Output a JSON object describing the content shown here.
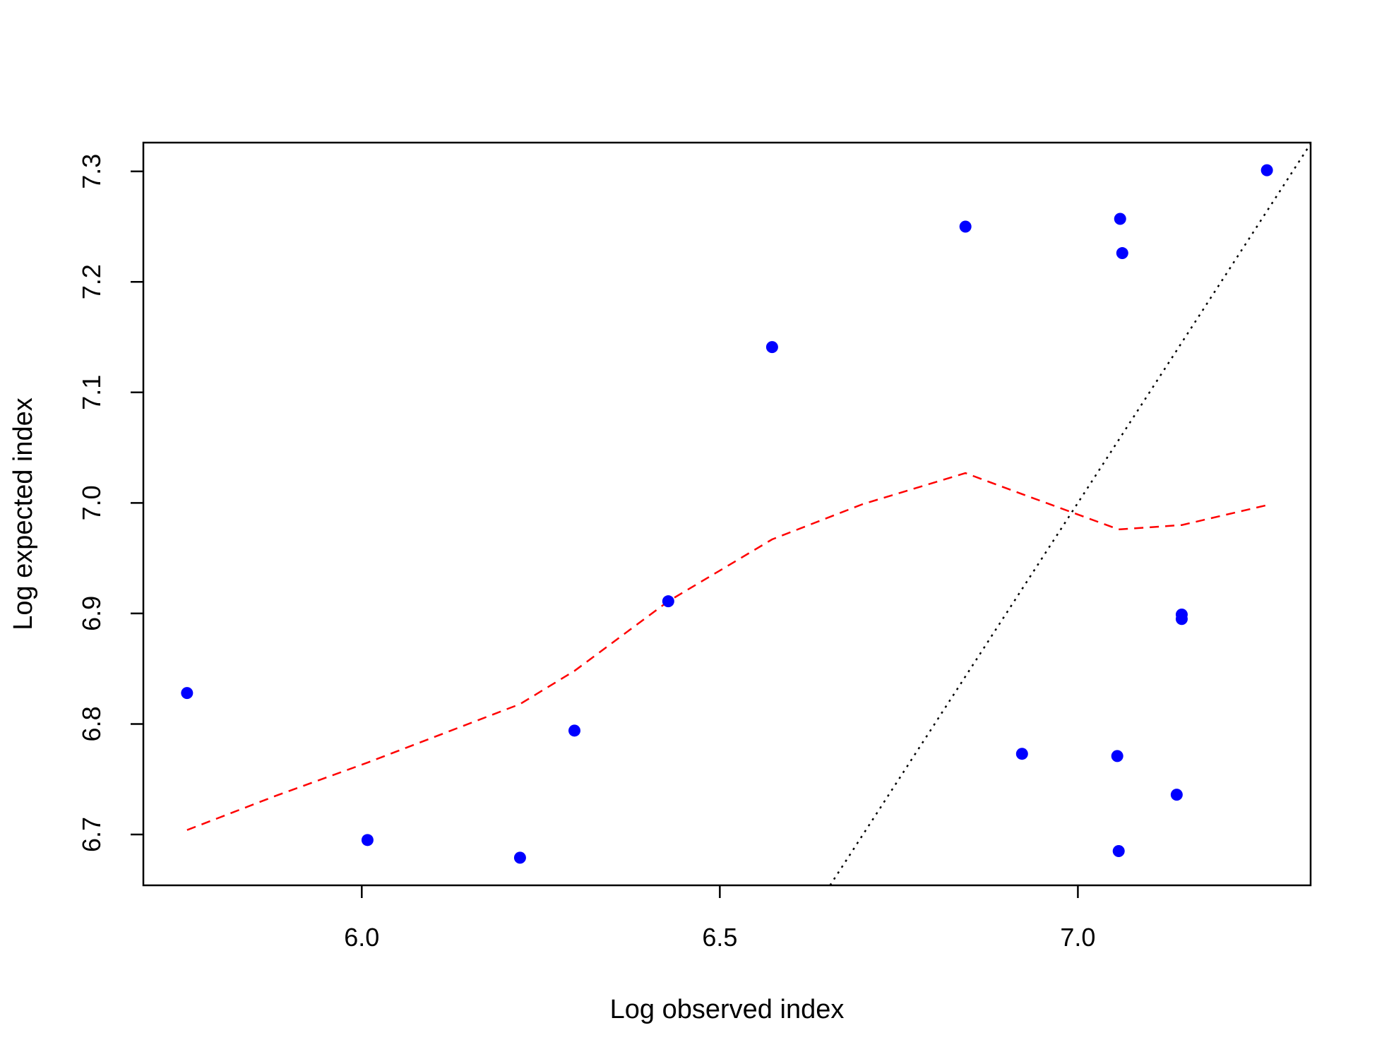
{
  "chart_data": {
    "type": "scatter",
    "title": "",
    "xlabel": "Log observed index",
    "ylabel": "Log expected index",
    "xlim": [
      5.695,
      7.325
    ],
    "ylim": [
      6.654,
      7.326
    ],
    "xticks": [
      6.0,
      6.5,
      7.0
    ],
    "xtick_labels": [
      "6.0",
      "6.5",
      "7.0"
    ],
    "yticks": [
      6.7,
      6.8,
      6.9,
      7.0,
      7.1,
      7.2,
      7.3
    ],
    "ytick_labels": [
      "6.7",
      "6.8",
      "6.9",
      "7.0",
      "7.1",
      "7.2",
      "7.3"
    ],
    "grid": false,
    "legend": "none",
    "series": [
      {
        "kind": "points",
        "color": "#0000ff",
        "x": [
          5.756,
          6.008,
          6.221,
          6.297,
          6.428,
          6.573,
          6.843,
          6.922,
          7.055,
          7.057,
          7.059,
          7.062,
          7.138,
          7.145,
          7.145,
          7.264
        ],
        "y": [
          6.828,
          6.695,
          6.679,
          6.794,
          6.911,
          7.141,
          7.25,
          6.773,
          6.771,
          6.685,
          7.257,
          7.226,
          6.736,
          6.899,
          6.895,
          7.301
        ]
      },
      {
        "kind": "line",
        "style": "dashed",
        "color": "#ff0000",
        "x": [
          5.756,
          5.88,
          6.008,
          6.221,
          6.297,
          6.428,
          6.573,
          6.7,
          6.843,
          6.922,
          7.057,
          7.145,
          7.264
        ],
        "y": [
          6.704,
          6.735,
          6.765,
          6.818,
          6.848,
          6.911,
          6.967,
          6.999,
          7.027,
          7.008,
          6.976,
          6.98,
          6.998
        ]
      },
      {
        "kind": "line",
        "style": "dotted",
        "color": "#000000",
        "x": [
          6.654,
          7.326
        ],
        "y": [
          6.654,
          7.326
        ]
      }
    ]
  }
}
